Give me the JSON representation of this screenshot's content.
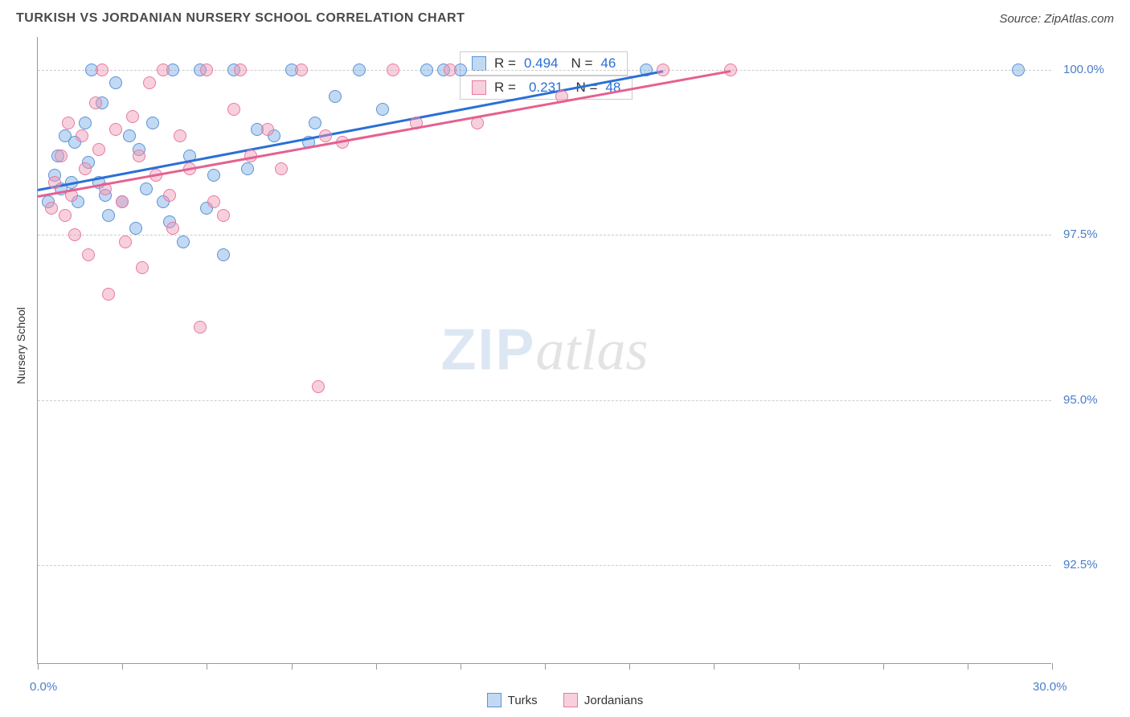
{
  "title": "TURKISH VS JORDANIAN NURSERY SCHOOL CORRELATION CHART",
  "source": "Source: ZipAtlas.com",
  "ylabel": "Nursery School",
  "watermark_zip": "ZIP",
  "watermark_atlas": "atlas",
  "chart": {
    "type": "scatter",
    "x_range": [
      0.0,
      30.0
    ],
    "y_range": [
      91.0,
      100.5
    ],
    "y_ticks": [
      92.5,
      95.0,
      97.5,
      100.0
    ],
    "y_tick_labels": [
      "92.5%",
      "95.0%",
      "97.5%",
      "100.0%"
    ],
    "x_ticks": [
      0,
      2.5,
      5,
      7.5,
      10,
      12.5,
      15,
      17.5,
      20,
      22.5,
      25,
      27.5,
      30
    ],
    "x_end_labels": {
      "min": "0.0%",
      "max": "30.0%"
    },
    "background_color": "#ffffff",
    "grid_color": "#cccccc",
    "axis_color": "#999999",
    "marker_radius": 8,
    "marker_opacity": 0.55,
    "series": [
      {
        "name": "Turks",
        "color_fill": "rgba(120,170,230,0.45)",
        "color_stroke": "#5a93d4",
        "trend_color": "#2a6fd6",
        "R": "0.494",
        "N": "46",
        "points": [
          [
            0.3,
            98.0
          ],
          [
            0.5,
            98.4
          ],
          [
            0.6,
            98.7
          ],
          [
            0.7,
            98.2
          ],
          [
            0.8,
            99.0
          ],
          [
            1.0,
            98.3
          ],
          [
            1.1,
            98.9
          ],
          [
            1.2,
            98.0
          ],
          [
            1.4,
            99.2
          ],
          [
            1.5,
            98.6
          ],
          [
            1.6,
            100.0
          ],
          [
            1.8,
            98.3
          ],
          [
            1.9,
            99.5
          ],
          [
            2.0,
            98.1
          ],
          [
            2.1,
            97.8
          ],
          [
            2.3,
            99.8
          ],
          [
            2.5,
            98.0
          ],
          [
            2.7,
            99.0
          ],
          [
            2.9,
            97.6
          ],
          [
            3.0,
            98.8
          ],
          [
            3.2,
            98.2
          ],
          [
            3.4,
            99.2
          ],
          [
            3.7,
            98.0
          ],
          [
            3.9,
            97.7
          ],
          [
            4.0,
            100.0
          ],
          [
            4.3,
            97.4
          ],
          [
            4.5,
            98.7
          ],
          [
            4.8,
            100.0
          ],
          [
            5.0,
            97.9
          ],
          [
            5.2,
            98.4
          ],
          [
            5.5,
            97.2
          ],
          [
            5.8,
            100.0
          ],
          [
            6.2,
            98.5
          ],
          [
            6.5,
            99.1
          ],
          [
            7.0,
            99.0
          ],
          [
            7.5,
            100.0
          ],
          [
            8.0,
            98.9
          ],
          [
            8.2,
            99.2
          ],
          [
            8.8,
            99.6
          ],
          [
            9.5,
            100.0
          ],
          [
            10.2,
            99.4
          ],
          [
            11.5,
            100.0
          ],
          [
            12.0,
            100.0
          ],
          [
            12.5,
            100.0
          ],
          [
            18.0,
            100.0
          ],
          [
            29.0,
            100.0
          ]
        ],
        "trend": {
          "x1": 0.0,
          "y1": 98.2,
          "x2": 18.5,
          "y2": 100.0
        }
      },
      {
        "name": "Jordanians",
        "color_fill": "rgba(240,150,180,0.45)",
        "color_stroke": "#e77aa0",
        "trend_color": "#e56091",
        "R": "0.231",
        "N": "48",
        "points": [
          [
            0.4,
            97.9
          ],
          [
            0.5,
            98.3
          ],
          [
            0.7,
            98.7
          ],
          [
            0.8,
            97.8
          ],
          [
            0.9,
            99.2
          ],
          [
            1.0,
            98.1
          ],
          [
            1.1,
            97.5
          ],
          [
            1.3,
            99.0
          ],
          [
            1.4,
            98.5
          ],
          [
            1.5,
            97.2
          ],
          [
            1.7,
            99.5
          ],
          [
            1.8,
            98.8
          ],
          [
            1.9,
            100.0
          ],
          [
            2.0,
            98.2
          ],
          [
            2.1,
            96.6
          ],
          [
            2.3,
            99.1
          ],
          [
            2.5,
            98.0
          ],
          [
            2.6,
            97.4
          ],
          [
            2.8,
            99.3
          ],
          [
            3.0,
            98.7
          ],
          [
            3.1,
            97.0
          ],
          [
            3.3,
            99.8
          ],
          [
            3.5,
            98.4
          ],
          [
            3.7,
            100.0
          ],
          [
            3.9,
            98.1
          ],
          [
            4.0,
            97.6
          ],
          [
            4.2,
            99.0
          ],
          [
            4.5,
            98.5
          ],
          [
            4.8,
            96.1
          ],
          [
            5.0,
            100.0
          ],
          [
            5.2,
            98.0
          ],
          [
            5.5,
            97.8
          ],
          [
            5.8,
            99.4
          ],
          [
            6.0,
            100.0
          ],
          [
            6.3,
            98.7
          ],
          [
            6.8,
            99.1
          ],
          [
            7.2,
            98.5
          ],
          [
            7.8,
            100.0
          ],
          [
            8.3,
            95.2
          ],
          [
            8.5,
            99.0
          ],
          [
            9.0,
            98.9
          ],
          [
            10.5,
            100.0
          ],
          [
            11.2,
            99.2
          ],
          [
            12.2,
            100.0
          ],
          [
            13.0,
            99.2
          ],
          [
            15.5,
            99.6
          ],
          [
            18.5,
            100.0
          ],
          [
            20.5,
            100.0
          ]
        ],
        "trend": {
          "x1": 0.0,
          "y1": 98.1,
          "x2": 20.5,
          "y2": 100.0
        }
      }
    ],
    "legend_r_label": "R =",
    "legend_n_label": "N ="
  },
  "bottom_legend": {
    "turks_label": "Turks",
    "jordanians_label": "Jordanians"
  }
}
